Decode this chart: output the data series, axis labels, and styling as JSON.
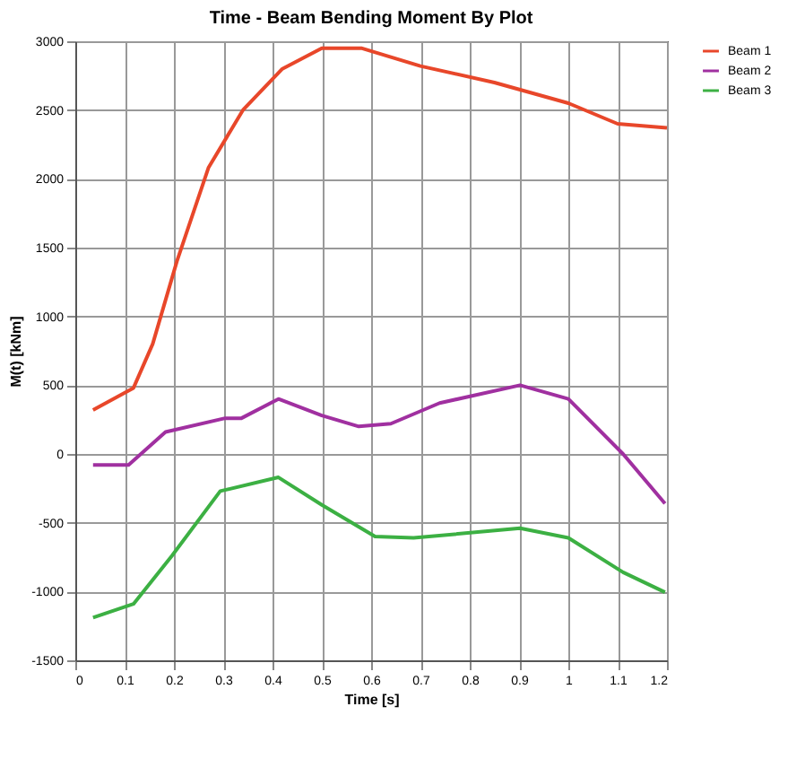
{
  "chart_data": {
    "type": "line",
    "title": "Time - Beam Bending Moment By Plot",
    "xlabel": "Time [s]",
    "ylabel": "M(t) [kNm]",
    "xlim": [
      0,
      1.2
    ],
    "xticks": [
      0,
      0.1,
      0.2,
      0.3,
      0.4,
      0.5,
      0.6,
      0.7,
      0.8,
      0.9,
      1,
      1.1,
      1.2
    ],
    "ylim": [
      -1500,
      3000
    ],
    "yticks": [
      -1500,
      -1000,
      -500,
      0,
      500,
      1000,
      1500,
      2000,
      2500,
      3000
    ],
    "grid": true,
    "legend": "right",
    "marker": "none",
    "line_style": "solid",
    "series": [
      {
        "name": "Beam 1",
        "color": "#e8472a",
        "x": [
          0.036,
          0.118,
          0.157,
          0.206,
          0.27,
          0.34,
          0.42,
          0.5,
          0.58,
          0.7,
          0.85,
          1.0,
          1.1,
          1.2
        ],
        "values": [
          320,
          480,
          800,
          1400,
          2080,
          2500,
          2800,
          2950,
          2950,
          2820,
          2700,
          2550,
          2400,
          2370
        ]
      },
      {
        "name": "Beam 2",
        "color": "#a030a0",
        "x": [
          0.036,
          0.108,
          0.183,
          0.304,
          0.337,
          0.412,
          0.5,
          0.575,
          0.64,
          0.739,
          0.902,
          1.0,
          1.111,
          1.196
        ],
        "values": [
          -80,
          -80,
          160,
          260,
          260,
          400,
          280,
          200,
          220,
          370,
          500,
          400,
          0,
          -360
        ]
      },
      {
        "name": "Beam 3",
        "color": "#3cb043",
        "x": [
          0.036,
          0.118,
          0.196,
          0.294,
          0.412,
          0.5,
          0.608,
          0.686,
          0.902,
          1.0,
          1.111,
          1.196
        ],
        "values": [
          -1190,
          -1090,
          -740,
          -270,
          -170,
          -370,
          -600,
          -610,
          -540,
          -610,
          -860,
          -1005
        ]
      }
    ]
  }
}
